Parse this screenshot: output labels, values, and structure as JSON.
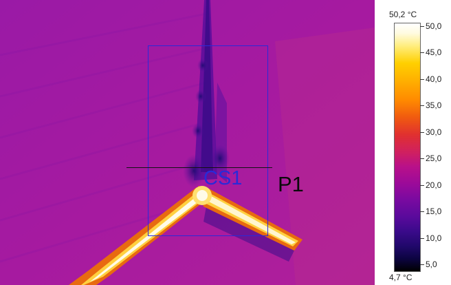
{
  "thermal_image": {
    "overlays": {
      "box_label": "CS1",
      "line_label": "P1"
    }
  },
  "scale": {
    "max_label": "50,2 °C",
    "min_label": "4,7 °C",
    "ticks": [
      "50,0",
      "45,0",
      "40,0",
      "35,0",
      "30,0",
      "25,0",
      "20,0",
      "15,0",
      "10,0",
      "5,0"
    ],
    "palette": "iron"
  }
}
